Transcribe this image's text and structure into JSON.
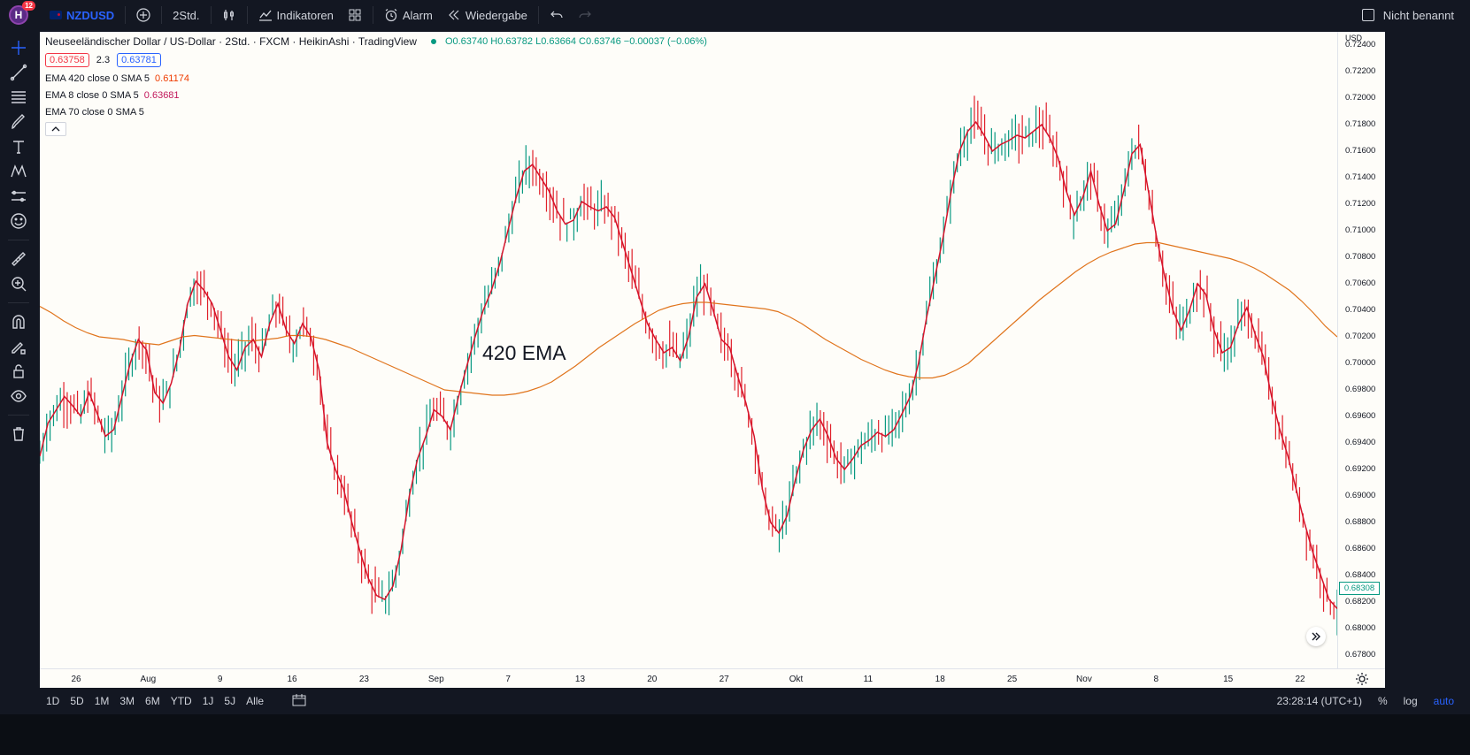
{
  "topbar": {
    "avatar_letter": "H",
    "notification_count": "12",
    "symbol": "NZDUSD",
    "interval": "2Std.",
    "indicators_label": "Indikatoren",
    "alert_label": "Alarm",
    "replay_label": "Wiedergabe",
    "layout_name": "Nicht benannt"
  },
  "legend": {
    "title": "Neuseeländischer Dollar / US-Dollar · 2Std. · FXCM · HeikinAshi · TradingView",
    "ohlc": "O0.63740 H0.63782 L0.63664 C0.63746 −0.00037 (−0.06%)",
    "bid": "0.63758",
    "spread": "2.3",
    "ask": "0.63781",
    "indicators": [
      {
        "label": "EMA 420 close 0 SMA 5",
        "value": "0.61174"
      },
      {
        "label": "EMA 8 close 0 SMA 5",
        "value": "0.63681"
      },
      {
        "label": "EMA 70 close 0 SMA 5",
        "value": ""
      }
    ]
  },
  "annotation": "420 EMA",
  "price_axis": {
    "currency": "USD",
    "labels": [
      "0.72400",
      "0.72200",
      "0.72000",
      "0.71800",
      "0.71600",
      "0.71400",
      "0.71200",
      "0.71000",
      "0.70800",
      "0.70600",
      "0.70400",
      "0.70200",
      "0.70000",
      "0.69800",
      "0.69600",
      "0.69400",
      "0.69200",
      "0.69000",
      "0.68800",
      "0.68600",
      "0.68400",
      "0.68200",
      "0.68000",
      "0.67800"
    ],
    "last_price": "0.68308"
  },
  "time_axis": {
    "labels": [
      "26",
      "Aug",
      "9",
      "16",
      "23",
      "Sep",
      "7",
      "13",
      "20",
      "27",
      "Okt",
      "11",
      "18",
      "25",
      "Nov",
      "8",
      "15",
      "22"
    ]
  },
  "bottombar": {
    "ranges": [
      "1D",
      "5D",
      "1M",
      "3M",
      "6M",
      "YTD",
      "1J",
      "5J",
      "Alle"
    ],
    "clock": "23:28:14 (UTC+1)",
    "percent": "%",
    "log": "log",
    "auto": "auto"
  },
  "colors": {
    "up": "#089981",
    "down": "#e0212b",
    "ema8": "#d6132b",
    "ema420": "#e0741c",
    "accent": "#2962ff"
  },
  "chart_data": {
    "type": "line",
    "series": [
      {
        "name": "EMA 8 close 0 SMA 5",
        "values": [
          0.693,
          0.6955,
          0.6965,
          0.6975,
          0.6968,
          0.696,
          0.6978,
          0.6962,
          0.6945,
          0.695,
          0.6975,
          0.7,
          0.7018,
          0.701,
          0.6978,
          0.697,
          0.6985,
          0.701,
          0.7045,
          0.7062,
          0.7055,
          0.7045,
          0.7025,
          0.7005,
          0.6995,
          0.7012,
          0.7018,
          0.7005,
          0.703,
          0.7045,
          0.7025,
          0.7015,
          0.703,
          0.702,
          0.6995,
          0.694,
          0.692,
          0.6905,
          0.688,
          0.6858,
          0.6838,
          0.6825,
          0.6822,
          0.6832,
          0.686,
          0.69,
          0.6928,
          0.6945,
          0.6965,
          0.696,
          0.695,
          0.6975,
          0.6998,
          0.702,
          0.704,
          0.7055,
          0.7075,
          0.71,
          0.7125,
          0.7145,
          0.715,
          0.714,
          0.713,
          0.7115,
          0.7105,
          0.7108,
          0.7122,
          0.7118,
          0.7115,
          0.7118,
          0.711,
          0.709,
          0.707,
          0.705,
          0.703,
          0.7018,
          0.7008,
          0.7012,
          0.7002,
          0.702,
          0.705,
          0.706,
          0.704,
          0.7018,
          0.7012,
          0.699,
          0.697,
          0.6945,
          0.6905,
          0.688,
          0.6872,
          0.6885,
          0.6912,
          0.6935,
          0.695,
          0.6958,
          0.6945,
          0.6928,
          0.692,
          0.6928,
          0.6938,
          0.6942,
          0.6948,
          0.6945,
          0.695,
          0.6962,
          0.6975,
          0.7,
          0.7035,
          0.7065,
          0.7095,
          0.713,
          0.716,
          0.7175,
          0.7182,
          0.7172,
          0.716,
          0.7165,
          0.7168,
          0.7172,
          0.717,
          0.7175,
          0.718,
          0.717,
          0.7155,
          0.713,
          0.7112,
          0.7125,
          0.7145,
          0.712,
          0.71,
          0.7105,
          0.713,
          0.7158,
          0.7165,
          0.713,
          0.7095,
          0.7065,
          0.704,
          0.7025,
          0.704,
          0.706,
          0.7052,
          0.7025,
          0.7008,
          0.7012,
          0.703,
          0.7042,
          0.7022,
          0.7005,
          0.6975,
          0.695,
          0.693,
          0.6905,
          0.688,
          0.6858,
          0.684,
          0.6822,
          0.6815
        ]
      },
      {
        "name": "EMA 420 close 0 SMA 5",
        "values": [
          0.7043,
          0.7038,
          0.7032,
          0.7027,
          0.7023,
          0.702,
          0.7019,
          0.7018,
          0.7016,
          0.7015,
          0.7014,
          0.7017,
          0.702,
          0.7021,
          0.702,
          0.7019,
          0.7018,
          0.7017,
          0.7017,
          0.7018,
          0.7019,
          0.7021,
          0.7021,
          0.702,
          0.7018,
          0.7015,
          0.7012,
          0.7008,
          0.7004,
          0.7,
          0.6996,
          0.6992,
          0.6988,
          0.6984,
          0.698,
          0.6979,
          0.6978,
          0.6977,
          0.6976,
          0.6976,
          0.6977,
          0.6979,
          0.6982,
          0.6986,
          0.6992,
          0.6998,
          0.7005,
          0.7012,
          0.7018,
          0.7024,
          0.703,
          0.7035,
          0.704,
          0.7043,
          0.7045,
          0.7046,
          0.7046,
          0.7045,
          0.7044,
          0.7043,
          0.7042,
          0.7041,
          0.7039,
          0.7035,
          0.703,
          0.7024,
          0.7018,
          0.7013,
          0.7008,
          0.7003,
          0.6999,
          0.6995,
          0.6992,
          0.699,
          0.6989,
          0.6989,
          0.6991,
          0.6995,
          0.7,
          0.7008,
          0.7016,
          0.7024,
          0.7032,
          0.704,
          0.7048,
          0.7055,
          0.7062,
          0.7069,
          0.7075,
          0.708,
          0.7084,
          0.7087,
          0.709,
          0.7091,
          0.7091,
          0.7089,
          0.7087,
          0.7085,
          0.7083,
          0.7081,
          0.7079,
          0.7076,
          0.7072,
          0.7067,
          0.7061,
          0.7055,
          0.7047,
          0.7038,
          0.7028,
          0.702
        ]
      }
    ],
    "ylim": [
      0.677,
      0.725
    ],
    "xlabel": "",
    "ylabel": "",
    "grid": false,
    "annotations": [
      "420 EMA"
    ]
  }
}
